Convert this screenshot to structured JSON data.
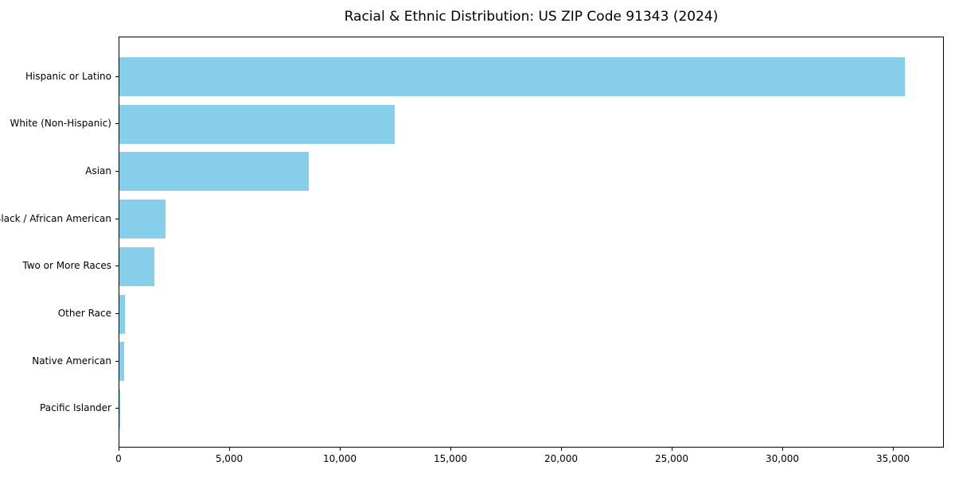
{
  "chart_data": {
    "type": "bar",
    "orientation": "horizontal",
    "title": "Racial & Ethnic Distribution: US ZIP Code 91343 (2024)",
    "categories": [
      "Hispanic or Latino",
      "White (Non-Hispanic)",
      "Asian",
      "Black / African American",
      "Two or More Races",
      "Other Race",
      "Native American",
      "Pacific Islander"
    ],
    "values": [
      35500,
      12450,
      8550,
      2100,
      1580,
      260,
      220,
      40
    ],
    "xlabel": "",
    "ylabel": "",
    "xlim": [
      0,
      37300
    ],
    "xticks": [
      0,
      5000,
      10000,
      15000,
      20000,
      25000,
      30000,
      35000
    ],
    "xtick_labels": [
      "0",
      "5,000",
      "10,000",
      "15,000",
      "20,000",
      "25,000",
      "30,000",
      "35,000"
    ],
    "bar_color": "#87CEEB",
    "text_color": "#000000",
    "spine_color": "#000000",
    "grid": false,
    "legend_position": "none"
  }
}
